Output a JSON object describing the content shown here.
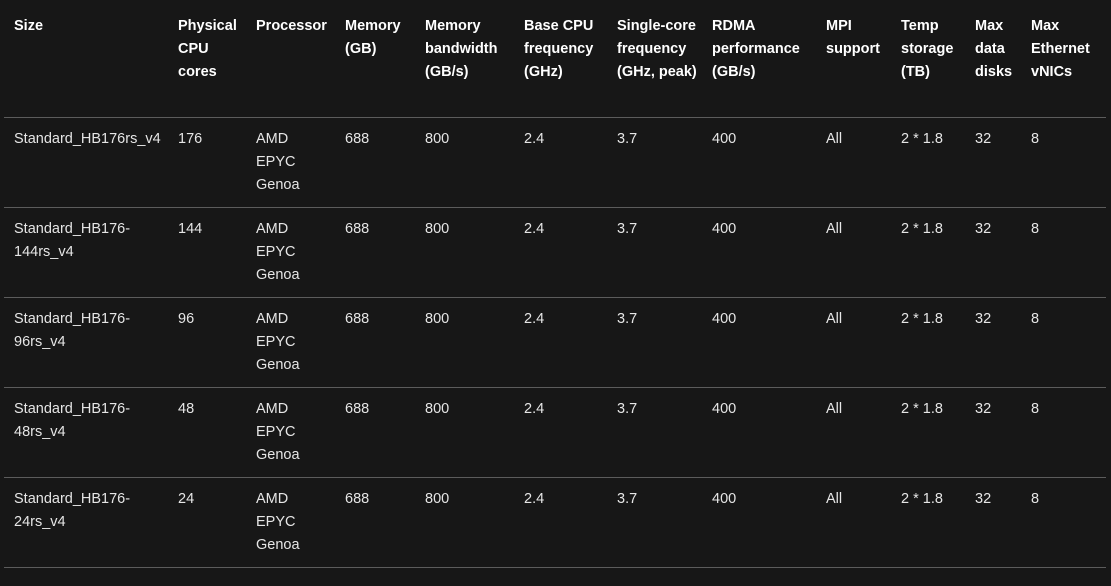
{
  "table": {
    "headers": [
      "Size",
      "Physical CPU cores",
      "Processor",
      "Memory (GB)",
      "Memory bandwidth (GB/s)",
      "Base CPU frequency (GHz)",
      "Single-core frequency (GHz, peak)",
      "RDMA performance (GB/s)",
      "MPI support",
      "Temp storage (TB)",
      "Max data disks",
      "Max Ethernet vNICs"
    ],
    "rows": [
      [
        "Standard_HB176rs_v4",
        "176",
        "AMD EPYC Genoa",
        "688",
        "800",
        "2.4",
        "3.7",
        "400",
        "All",
        "2 * 1.8",
        "32",
        "8"
      ],
      [
        "Standard_HB176-144rs_v4",
        "144",
        "AMD EPYC Genoa",
        "688",
        "800",
        "2.4",
        "3.7",
        "400",
        "All",
        "2 * 1.8",
        "32",
        "8"
      ],
      [
        "Standard_HB176-96rs_v4",
        "96",
        "AMD EPYC Genoa",
        "688",
        "800",
        "2.4",
        "3.7",
        "400",
        "All",
        "2 * 1.8",
        "32",
        "8"
      ],
      [
        "Standard_HB176-48rs_v4",
        "48",
        "AMD EPYC Genoa",
        "688",
        "800",
        "2.4",
        "3.7",
        "400",
        "All",
        "2 * 1.8",
        "32",
        "8"
      ],
      [
        "Standard_HB176-24rs_v4",
        "24",
        "AMD EPYC Genoa",
        "688",
        "800",
        "2.4",
        "3.7",
        "400",
        "All",
        "2 * 1.8",
        "32",
        "8"
      ]
    ]
  }
}
